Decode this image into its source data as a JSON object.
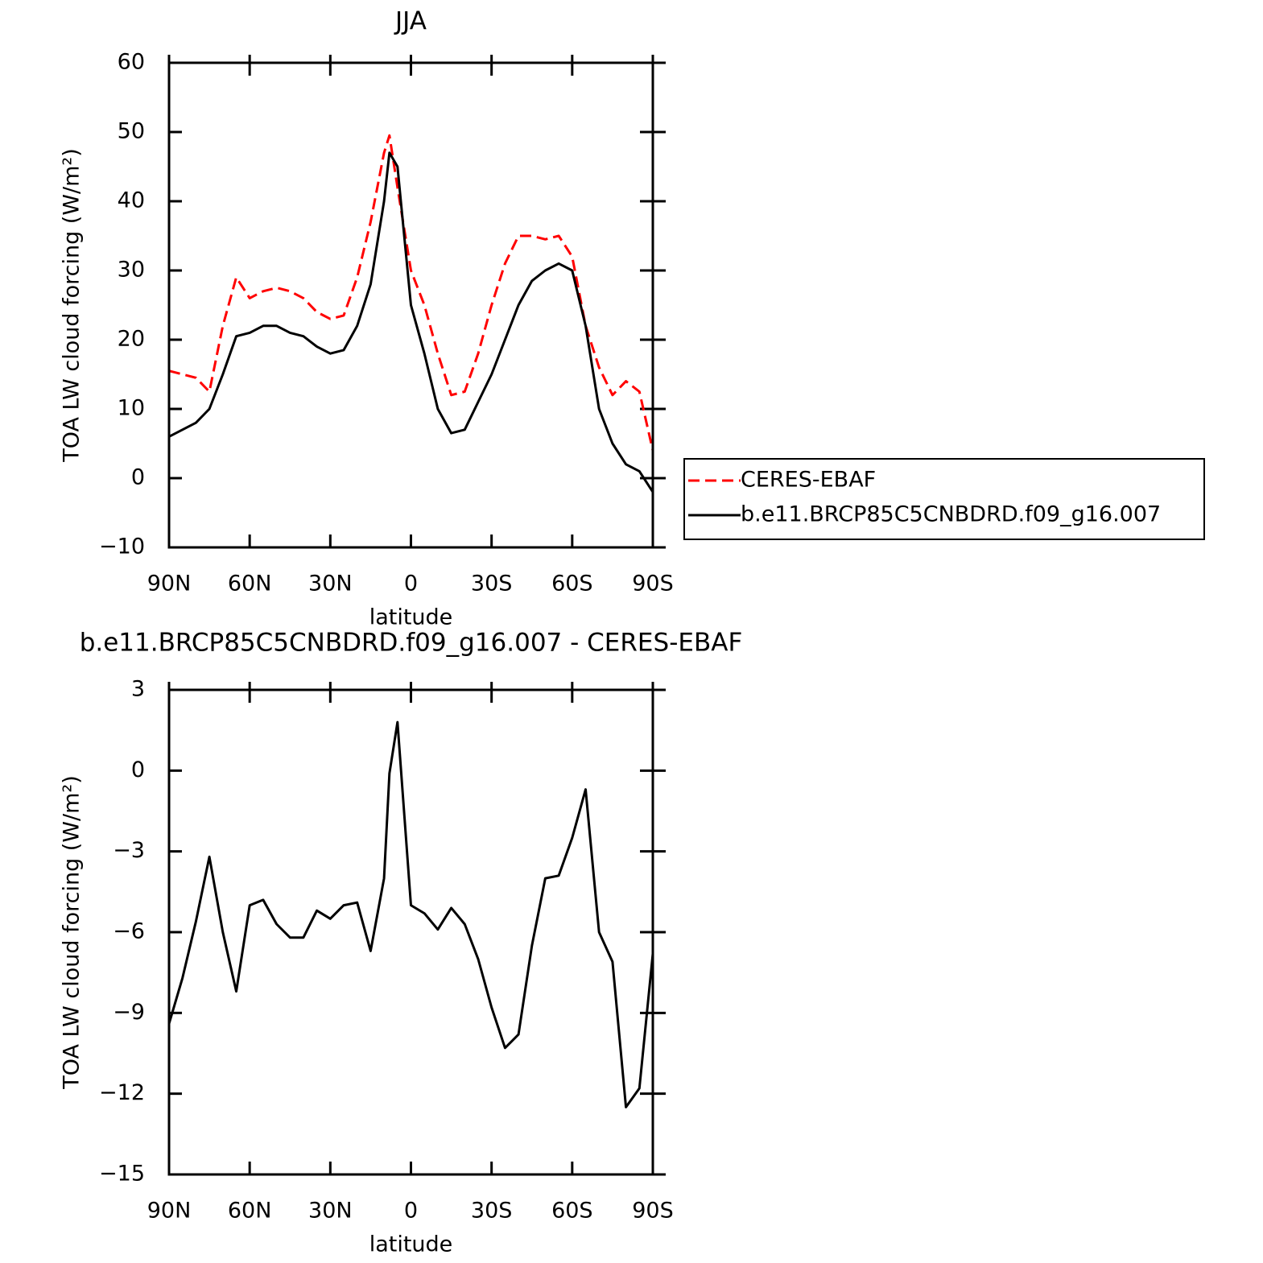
{
  "chart_data": [
    {
      "type": "line",
      "title": "JJA",
      "xlabel": "latitude",
      "ylabel": "TOA LW cloud forcing (W/m²)",
      "x": [
        90,
        85,
        80,
        75,
        70,
        65,
        60,
        55,
        50,
        45,
        40,
        35,
        30,
        25,
        20,
        15,
        10,
        8,
        5,
        0,
        -5,
        -10,
        -15,
        -20,
        -25,
        -30,
        -35,
        -40,
        -45,
        -50,
        -55,
        -60,
        -65,
        -70,
        -75,
        -80,
        -85,
        -90
      ],
      "series": [
        {
          "name": "CERES-EBAF",
          "color": "#ff0000",
          "dashed": true,
          "values": [
            15.5,
            15,
            14.5,
            12.5,
            22,
            29,
            26,
            27,
            27.5,
            27,
            26,
            24,
            23,
            23.5,
            29,
            37,
            47,
            49.5,
            42,
            30,
            25,
            18,
            12,
            12.5,
            18,
            25,
            31,
            35,
            35,
            34.5,
            35,
            32,
            22,
            16,
            12,
            14,
            12.5,
            4
          ]
        },
        {
          "name": "b.e11.BRCP85C5CNBDRD.f09_g16.007",
          "color": "#000000",
          "dashed": false,
          "values": [
            6,
            7,
            8,
            10,
            15,
            20.5,
            21,
            22,
            22,
            21,
            20.5,
            19,
            18,
            18.5,
            22,
            28,
            40,
            47,
            45,
            25,
            18,
            10,
            6.5,
            7,
            11,
            15,
            20,
            25,
            28.5,
            30,
            31,
            30,
            22,
            10,
            5,
            2,
            1,
            -2
          ]
        }
      ],
      "xlim": [
        90,
        -90
      ],
      "xticks": [
        {
          "value": 90,
          "label": "90N"
        },
        {
          "value": 60,
          "label": "60N"
        },
        {
          "value": 30,
          "label": "30N"
        },
        0,
        {
          "value": -30,
          "label": "30S"
        },
        {
          "value": -60,
          "label": "60S"
        },
        {
          "value": -90,
          "label": "90S"
        }
      ],
      "ylim": [
        -10,
        60
      ],
      "yticks": [
        {
          "value": -10,
          "label": "−10"
        },
        0,
        10,
        20,
        30,
        40,
        50,
        60
      ],
      "legend": "right"
    },
    {
      "type": "line",
      "title": "b.e11.BRCP85C5CNBDRD.f09_g16.007 - CERES-EBAF",
      "xlabel": "latitude",
      "ylabel": "TOA LW cloud forcing (W/m²)",
      "x": [
        90,
        85,
        80,
        75,
        70,
        65,
        60,
        55,
        50,
        45,
        40,
        35,
        30,
        25,
        20,
        15,
        10,
        8,
        5,
        0,
        -5,
        -10,
        -15,
        -20,
        -25,
        -30,
        -35,
        -40,
        -45,
        -50,
        -55,
        -60,
        -65,
        -70,
        -75,
        -80,
        -85,
        -90
      ],
      "series": [
        {
          "color": "#000000",
          "dashed": false,
          "values": [
            -9.4,
            -7.7,
            -5.6,
            -3.2,
            -6,
            -8.2,
            -5,
            -4.8,
            -5.7,
            -6.2,
            -6.2,
            -5.2,
            -5.5,
            -5,
            -4.9,
            -6.7,
            -4,
            -0.1,
            1.8,
            -5,
            -5.3,
            -5.9,
            -5.1,
            -5.7,
            -7,
            -8.8,
            -10.3,
            -9.8,
            -6.5,
            -4,
            -3.9,
            -2.5,
            -0.7,
            -6,
            -7.1,
            -12.5,
            -11.8,
            -6.8
          ]
        }
      ],
      "xlim": [
        90,
        -90
      ],
      "xticks": [
        {
          "value": 90,
          "label": "90N"
        },
        {
          "value": 60,
          "label": "60N"
        },
        {
          "value": 30,
          "label": "30N"
        },
        0,
        {
          "value": -30,
          "label": "30S"
        },
        {
          "value": -60,
          "label": "60S"
        },
        {
          "value": -90,
          "label": "90S"
        }
      ],
      "ylim": [
        -15,
        3
      ],
      "yticks": [
        {
          "value": -15,
          "label": "−15"
        },
        {
          "value": -12,
          "label": "−12"
        },
        {
          "value": -9,
          "label": "−9"
        },
        {
          "value": -6,
          "label": "−6"
        },
        {
          "value": -3,
          "label": "−3"
        },
        0,
        3
      ]
    }
  ]
}
